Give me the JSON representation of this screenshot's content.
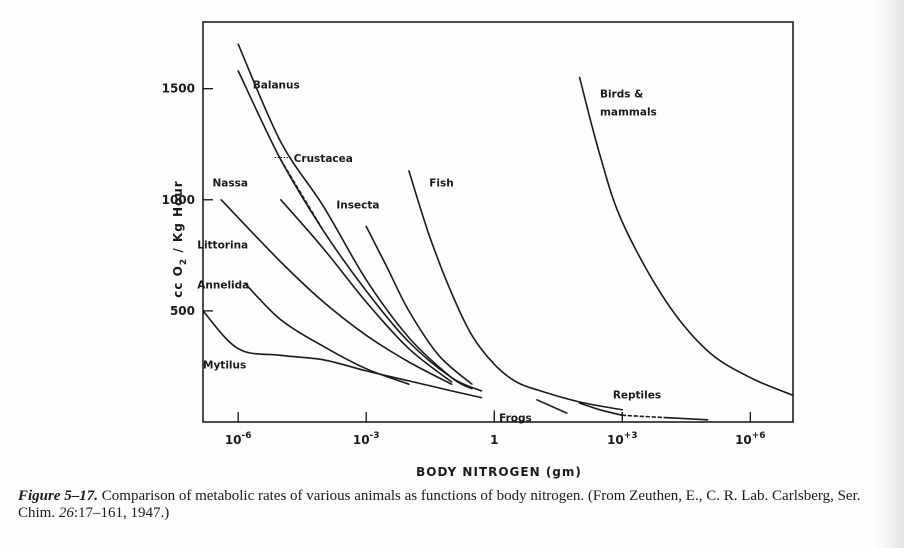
{
  "figure": {
    "number": "Figure 5–17.",
    "caption_text": "Comparison of metabolic rates of various animals as functions of body nitrogen. (From Zeuthen, E., C. R. Lab. Carlsberg, Ser. Chim. ",
    "caption_volume": "26",
    "caption_tail": ":17–161, 1947.)"
  },
  "chart_data": {
    "type": "line",
    "xscale": "log",
    "xlabel": "BODY NITROGEN (gm)",
    "ylabel": "cc O2 / Kg Hour",
    "xlim": [
      1.5e-07,
      10000000.0
    ],
    "ylim": [
      0,
      1800
    ],
    "grid": false,
    "legend": "none",
    "y_ticks": [
      {
        "value": 500,
        "label": "500"
      },
      {
        "value": 1000,
        "label": "1000"
      },
      {
        "value": 1500,
        "label": "1500"
      }
    ],
    "x_ticks": [
      {
        "value": 1e-06,
        "base": "10",
        "exp": "-6"
      },
      {
        "value": 0.001,
        "base": "10",
        "exp": "-3"
      },
      {
        "value": 1,
        "base": "1",
        "exp": ""
      },
      {
        "value": 1000,
        "base": "10",
        "exp": "+3"
      },
      {
        "value": 1000000,
        "base": "10",
        "exp": "+6"
      }
    ],
    "series": [
      {
        "name": "Balanus",
        "points": [
          [
            1e-06,
            1700
          ],
          [
            1e-05,
            1260
          ],
          [
            0.0001,
            970
          ],
          [
            0.001,
            640
          ],
          [
            0.01,
            380
          ],
          [
            0.1,
            200
          ],
          [
            0.3,
            150
          ]
        ]
      },
      {
        "name": "Crustacea",
        "points": [
          [
            1e-06,
            1580
          ],
          [
            1e-05,
            1180
          ],
          [
            0.0001,
            860
          ],
          [
            0.001,
            590
          ],
          [
            0.01,
            360
          ],
          [
            0.1,
            200
          ],
          [
            0.5,
            140
          ]
        ]
      },
      {
        "name": "Crustacea",
        "dashed": true,
        "points": [
          [
            1e-05,
            1180
          ],
          [
            0.0001,
            860
          ]
        ]
      },
      {
        "name": "Nassa",
        "points": [
          [
            1e-05,
            1000
          ],
          [
            0.0001,
            780
          ],
          [
            0.001,
            540
          ],
          [
            0.01,
            330
          ],
          [
            0.1,
            180
          ]
        ]
      },
      {
        "name": "Insecta",
        "points": [
          [
            0.001,
            880
          ],
          [
            0.003,
            700
          ],
          [
            0.01,
            500
          ],
          [
            0.05,
            300
          ],
          [
            0.3,
            170
          ]
        ]
      },
      {
        "name": "Fish",
        "points": [
          [
            0.01,
            1130
          ],
          [
            0.03,
            840
          ],
          [
            0.1,
            580
          ],
          [
            0.3,
            390
          ],
          [
            1,
            260
          ],
          [
            3,
            185
          ],
          [
            10,
            145
          ],
          [
            100,
            90
          ],
          [
            1000,
            55
          ]
        ]
      },
      {
        "name": "Birds & mammals",
        "points": [
          [
            100,
            1550
          ],
          [
            300,
            1200
          ],
          [
            1000,
            900
          ],
          [
            10000,
            550
          ],
          [
            100000,
            320
          ],
          [
            1000000,
            200
          ],
          [
            10000000,
            120
          ]
        ]
      },
      {
        "name": "Littorina",
        "points": [
          [
            4e-07,
            1000
          ],
          [
            1e-05,
            720
          ],
          [
            0.0001,
            540
          ],
          [
            0.001,
            390
          ],
          [
            0.01,
            270
          ],
          [
            0.1,
            170
          ]
        ]
      },
      {
        "name": "Annelida",
        "points": [
          [
            1.5e-06,
            620
          ],
          [
            1e-05,
            460
          ],
          [
            0.0001,
            340
          ],
          [
            0.001,
            240
          ],
          [
            0.01,
            170
          ]
        ]
      },
      {
        "name": "Mytilus",
        "points": [
          [
            1.5e-07,
            500
          ],
          [
            1e-06,
            330
          ],
          [
            1e-05,
            300
          ],
          [
            0.0001,
            280
          ],
          [
            0.001,
            230
          ],
          [
            0.01,
            185
          ],
          [
            0.1,
            140
          ],
          [
            0.5,
            110
          ]
        ]
      },
      {
        "name": "Frogs",
        "points": [
          [
            10,
            100
          ],
          [
            50,
            40
          ]
        ]
      },
      {
        "name": "Reptiles",
        "points": [
          [
            100,
            85
          ],
          [
            300,
            55
          ],
          [
            1000,
            30
          ]
        ]
      },
      {
        "name": "Reptiles",
        "dashed": true,
        "points": [
          [
            1000,
            30
          ],
          [
            10000,
            20
          ]
        ]
      },
      {
        "name": "Reptiles",
        "points": [
          [
            10000,
            20
          ],
          [
            100000,
            10
          ]
        ]
      }
    ],
    "labels": [
      {
        "text": "Balanus",
        "x": 2.2e-06,
        "y": 1500
      },
      {
        "text": "Crustacea",
        "x": 2e-05,
        "y": 1170
      },
      {
        "text": "Nassa",
        "x": 2.5e-07,
        "y": 1060
      },
      {
        "text": "Insecta",
        "x": 0.0002,
        "y": 960
      },
      {
        "text": "Fish",
        "x": 0.03,
        "y": 1060
      },
      {
        "text": "Birds &",
        "x": 300,
        "y": 1460
      },
      {
        "text": "mammals",
        "x": 300,
        "y": 1380
      },
      {
        "text": "Littorina",
        "x": 1.1e-07,
        "y": 780
      },
      {
        "text": "Annelida",
        "x": 1.1e-07,
        "y": 600
      },
      {
        "text": "Mytilus",
        "x": 1.5e-07,
        "y": 240
      },
      {
        "text": "Frogs",
        "x": 1.3,
        "y": 2
      },
      {
        "text": "Reptiles",
        "x": 600,
        "y": 105
      }
    ]
  }
}
